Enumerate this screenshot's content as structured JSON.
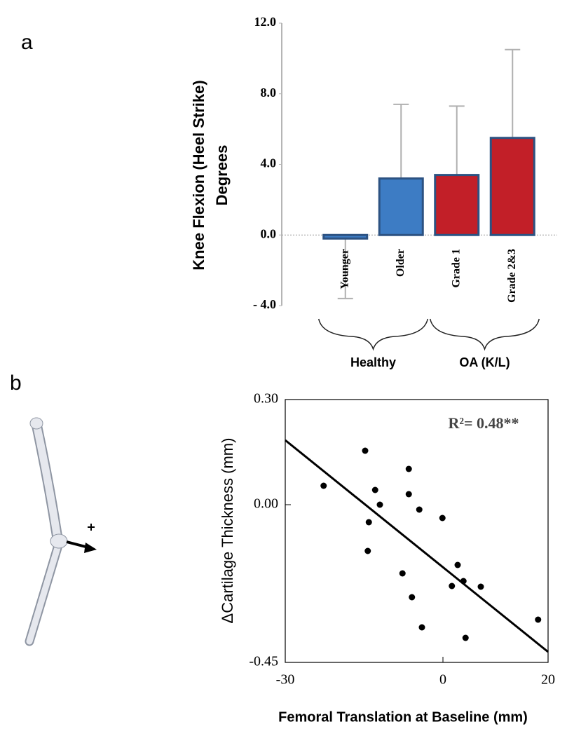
{
  "panel_labels": [
    "a",
    "b"
  ],
  "chart_data": [
    {
      "type": "bar",
      "y_label": [
        "Knee Flexion (Heel Strike)",
        "Degrees"
      ],
      "categories": [
        "Younger",
        "Older",
        "Grade 1",
        "Grade 2&3"
      ],
      "values": [
        -0.2,
        3.2,
        3.4,
        5.5
      ],
      "errors": [
        3.4,
        4.2,
        3.9,
        5.0
      ],
      "colors": [
        "#3d7cc4",
        "#3d7cc4",
        "#c21f28",
        "#c21f28"
      ],
      "edge_color": "#2c5282",
      "groups": [
        {
          "label": "Healthy",
          "categories": [
            "Younger",
            "Older"
          ]
        },
        {
          "label": "OA (K/L)",
          "categories": [
            "Grade 1",
            "Grade 2&3"
          ]
        }
      ],
      "ylim": [
        -4,
        12
      ],
      "yticks": [
        {
          "value": -4,
          "label": "- 4.0"
        },
        {
          "value": 0,
          "label": "0.0"
        },
        {
          "value": 4,
          "label": "4.0"
        },
        {
          "value": 8,
          "label": "8.0"
        },
        {
          "value": 12,
          "label": "12.0"
        }
      ]
    },
    {
      "type": "scatter",
      "x_label": "Femoral Translation at Baseline (mm)",
      "y_label": "ΔCartilage Thickness (mm)",
      "annotation": "R²= 0.48**",
      "color": "#000000",
      "x": [
        -22.7,
        -14.8,
        -12.9,
        -12.0,
        -14.1,
        -14.3,
        -6.5,
        -6.5,
        -4.5,
        -7.7,
        -5.9,
        -4.0,
        -0.1,
        1.7,
        2.8,
        3.9,
        4.3,
        7.2,
        18.1
      ],
      "y": [
        0.054,
        0.154,
        0.042,
        0.0,
        -0.05,
        -0.132,
        0.102,
        0.03,
        -0.014,
        -0.196,
        -0.264,
        -0.35,
        -0.038,
        -0.232,
        -0.172,
        -0.218,
        -0.38,
        -0.234,
        -0.328
      ],
      "fit_line": {
        "x": [
          -30,
          20
        ],
        "y": [
          0.184,
          -0.42
        ]
      },
      "xlim": [
        -30,
        20
      ],
      "xticks": [
        -30,
        0,
        20
      ],
      "ylim": [
        -0.45,
        0.3
      ],
      "yticks": [
        {
          "value": -0.45,
          "label": "-0.45"
        },
        {
          "value": 0,
          "label": "0.00"
        },
        {
          "value": 0.3,
          "label": "0.30"
        }
      ]
    }
  ]
}
